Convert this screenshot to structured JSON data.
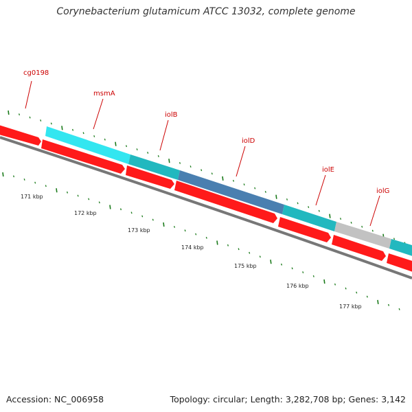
{
  "map": {
    "title": "Corynebacterium glutamicum ATCC 13032, complete genome",
    "accession_text": "Accession: NC_006958",
    "summary_text": "Topology: circular; Length: 3,282,708 bp; Genes: 3,142"
  },
  "colors": {
    "cds_red": "#ff1a1a",
    "cyan_light": "#33e6f0",
    "teal": "#22b8bf",
    "steel_blue": "#4a7fb0",
    "grey_gene": "#c2c2c2",
    "backbone": "#777777",
    "tick_green": "#1a7a1a",
    "label_red": "#cc0000"
  },
  "scale": {
    "unit": "kbp",
    "labels": [
      "171 kbp",
      "172 kbp",
      "173 kbp",
      "174 kbp",
      "175 kbp",
      "176 kbp",
      "177 kbp"
    ]
  },
  "genes": [
    {
      "name": "cg0198",
      "label": "cg0198"
    },
    {
      "name": "msmA",
      "label": "msmA"
    },
    {
      "name": "iolB",
      "label": "iolB"
    },
    {
      "name": "iolD",
      "label": "iolD"
    },
    {
      "name": "iolE",
      "label": "iolE"
    },
    {
      "name": "iolG",
      "label": "iolG"
    }
  ]
}
